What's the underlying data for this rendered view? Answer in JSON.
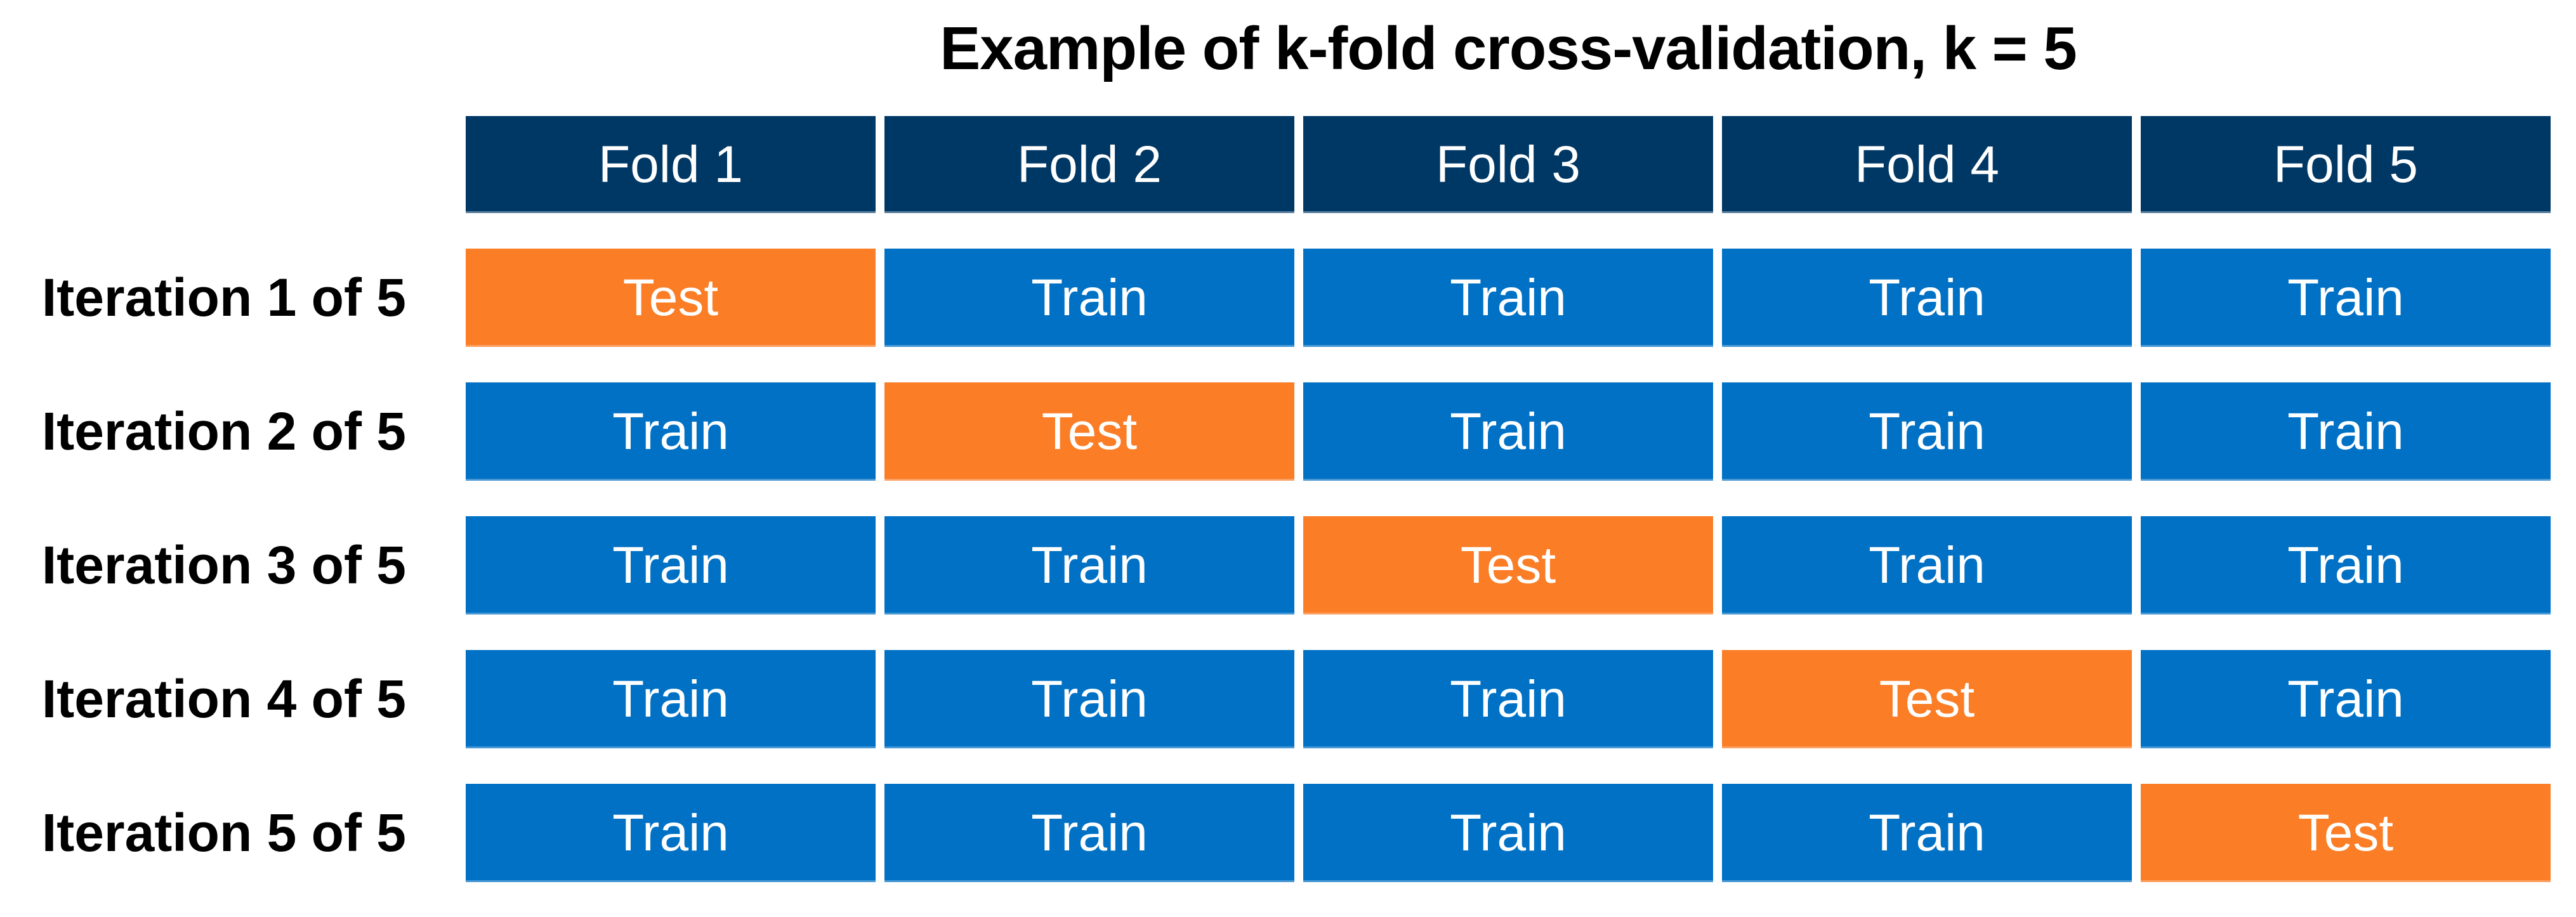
{
  "title": "Example of k-fold cross-validation, k = 5",
  "k": 5,
  "colors": {
    "background": "#FFFFFF",
    "header_bg": "#003865",
    "train_bg": "#0071C5",
    "test_bg": "#FB7D26",
    "cell_text": "#FFFFFF",
    "label_text": "#000000"
  },
  "table": {
    "fold_headers": [
      "Fold 1",
      "Fold 2",
      "Fold 3",
      "Fold 4",
      "Fold 5"
    ],
    "rows": [
      {
        "label": "Iteration 1 of 5",
        "cells": [
          "Test",
          "Train",
          "Train",
          "Train",
          "Train"
        ]
      },
      {
        "label": "Iteration 2 of 5",
        "cells": [
          "Train",
          "Test",
          "Train",
          "Train",
          "Train"
        ]
      },
      {
        "label": "Iteration 3 of 5",
        "cells": [
          "Train",
          "Train",
          "Test",
          "Train",
          "Train"
        ]
      },
      {
        "label": "Iteration 4 of 5",
        "cells": [
          "Train",
          "Train",
          "Train",
          "Test",
          "Train"
        ]
      },
      {
        "label": "Iteration 5 of 5",
        "cells": [
          "Train",
          "Train",
          "Train",
          "Train",
          "Test"
        ]
      }
    ]
  }
}
